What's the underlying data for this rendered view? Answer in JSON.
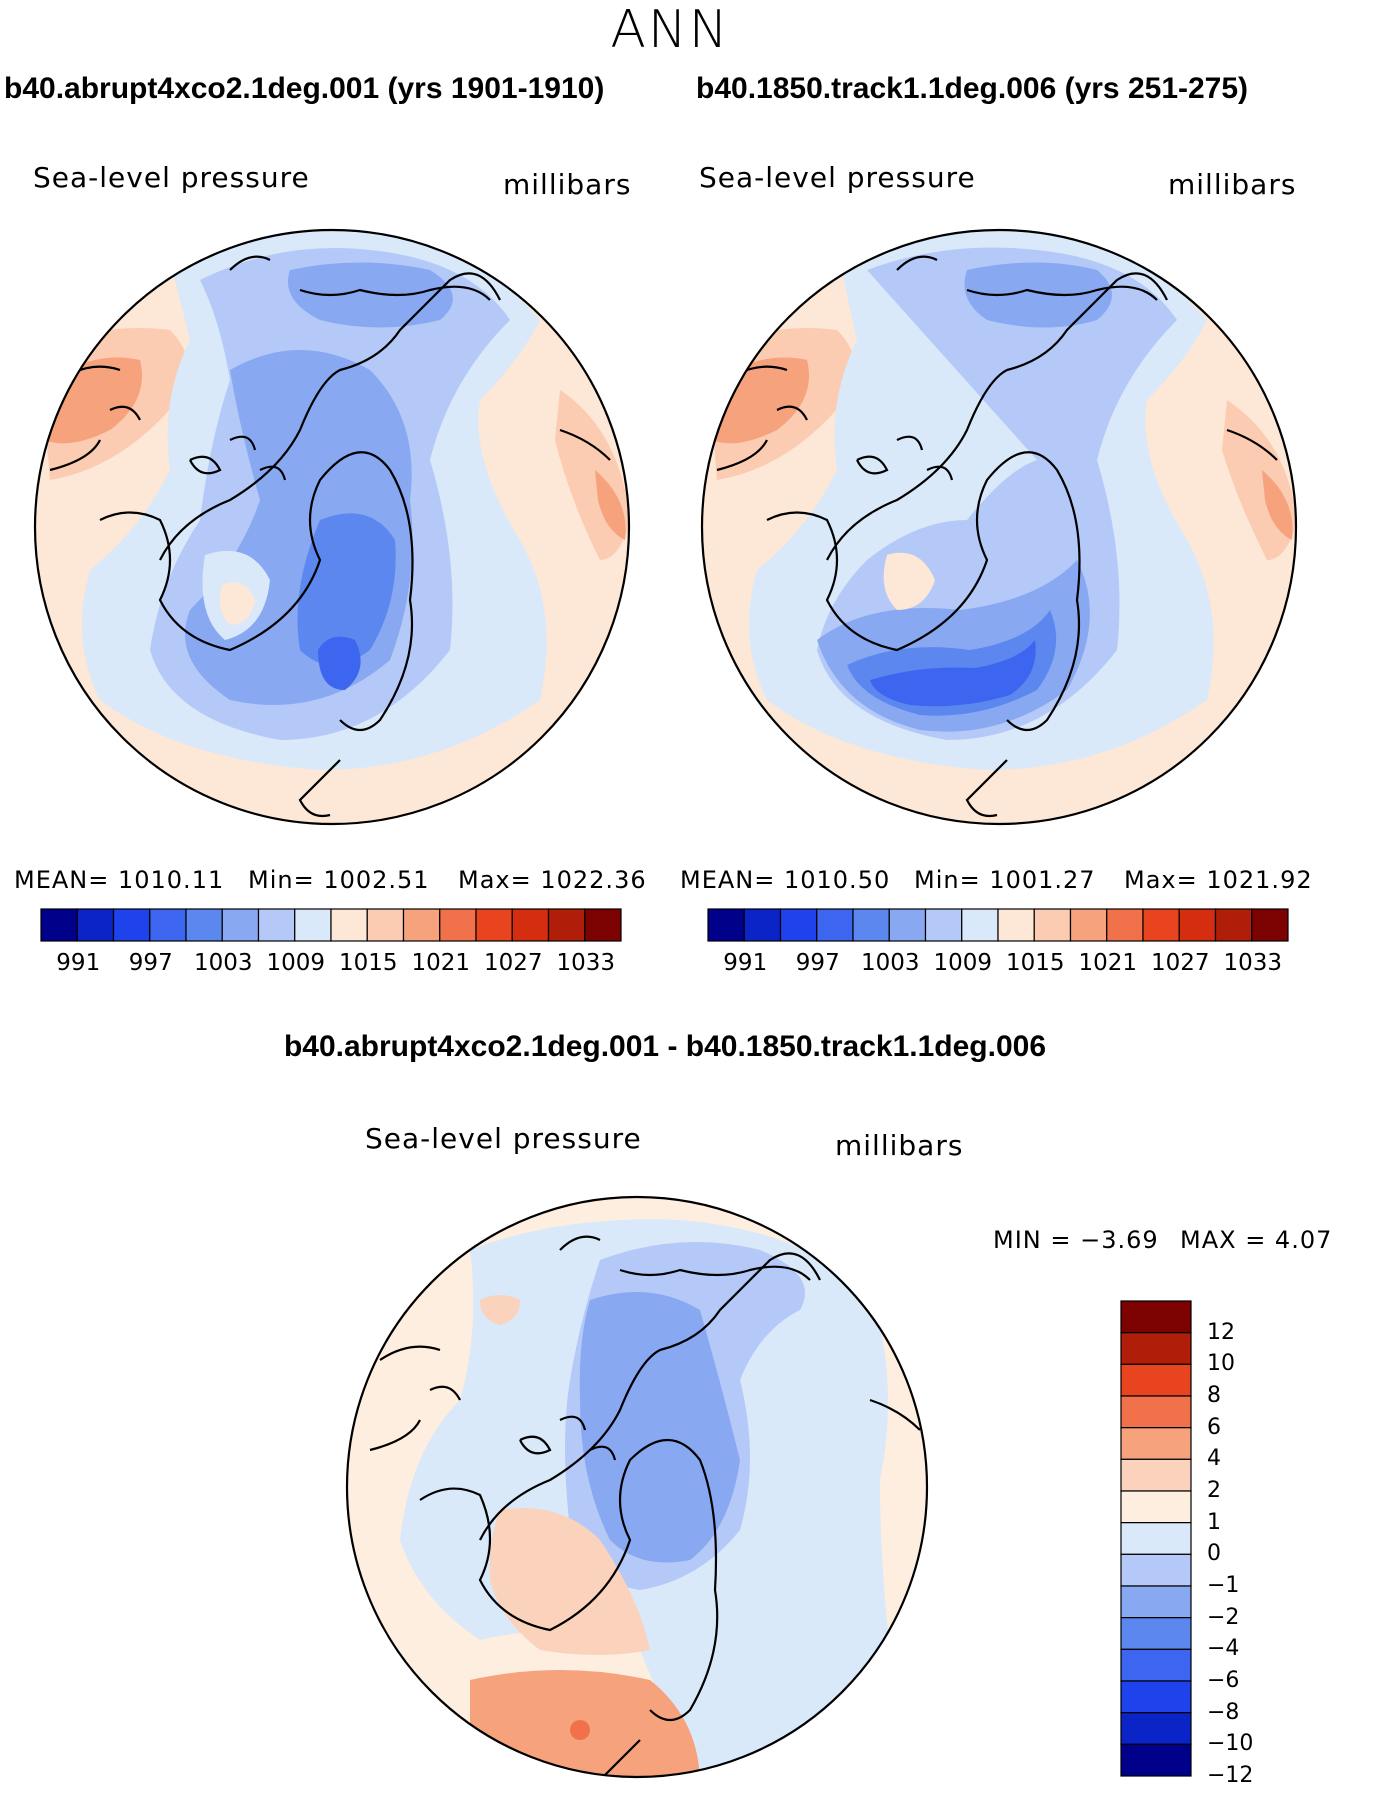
{
  "page": {
    "season": "ANN",
    "diff_title": "b40.abrupt4xco2.1deg.001 - b40.1850.track1.1deg.006"
  },
  "panels": [
    {
      "title": "b40.abrupt4xco2.1deg.001 (yrs 1901-1910)",
      "variable": "Sea-level pressure",
      "units": "millibars",
      "mean_text": "MEAN= 1010.11",
      "min_text": "Min= 1002.51",
      "max_text": "Max= 1022.36"
    },
    {
      "title": "b40.1850.track1.1deg.006 (yrs 251-275)",
      "variable": "Sea-level pressure",
      "units": "millibars",
      "mean_text": "MEAN= 1010.50",
      "min_text": "Min= 1001.27",
      "max_text": "Max= 1021.92"
    }
  ],
  "diff_panel": {
    "variable": "Sea-level pressure",
    "units": "millibars",
    "min_text": "MIN =   −3.69",
    "max_text": "MAX =    4.07"
  },
  "colors": {
    "abs_scale": [
      "#00008b",
      "#0b24c8",
      "#1e42ec",
      "#3d66f0",
      "#5c87ef",
      "#88a8f2",
      "#b4c9f7",
      "#d9e9fa",
      "#fde7d6",
      "#fbcbb2",
      "#f6a27c",
      "#f1724a",
      "#e84420",
      "#d42d10",
      "#b01d08",
      "#7d0303"
    ],
    "diff_scale": [
      "#00008b",
      "#0b24c8",
      "#1e42ec",
      "#3d66f0",
      "#5c87ef",
      "#88a8f2",
      "#b4c9f7",
      "#d9e9fa",
      "#fdeee0",
      "#fbd3bc",
      "#f6a27c",
      "#f1724a",
      "#e84420",
      "#b01d08",
      "#7d0303"
    ]
  },
  "chart_data": [
    {
      "type": "heatmap",
      "title": "b40.abrupt4xco2.1deg.001 (yrs 1901-1910)",
      "projection": "north polar stereographic",
      "variable": "Sea-level pressure",
      "units": "millibars",
      "mean": 1010.11,
      "min": 1002.51,
      "max": 1022.36,
      "colorbar_ticks": [
        "991",
        "997",
        "1003",
        "1009",
        "1015",
        "1021",
        "1027",
        "1033"
      ]
    },
    {
      "type": "heatmap",
      "title": "b40.1850.track1.1deg.006 (yrs 251-275)",
      "projection": "north polar stereographic",
      "variable": "Sea-level pressure",
      "units": "millibars",
      "mean": 1010.5,
      "min": 1001.27,
      "max": 1021.92,
      "colorbar_ticks": [
        "991",
        "997",
        "1003",
        "1009",
        "1015",
        "1021",
        "1027",
        "1033"
      ]
    },
    {
      "type": "heatmap",
      "title": "b40.abrupt4xco2.1deg.001 - b40.1850.track1.1deg.006",
      "projection": "north polar stereographic",
      "variable": "Sea-level pressure",
      "units": "millibars",
      "min": -3.69,
      "max": 4.07,
      "colorbar_ticks": [
        "12",
        "10",
        "8",
        "6",
        "4",
        "2",
        "1",
        "0",
        "−1",
        "−2",
        "−4",
        "−6",
        "−8",
        "−10",
        "−12"
      ]
    }
  ]
}
